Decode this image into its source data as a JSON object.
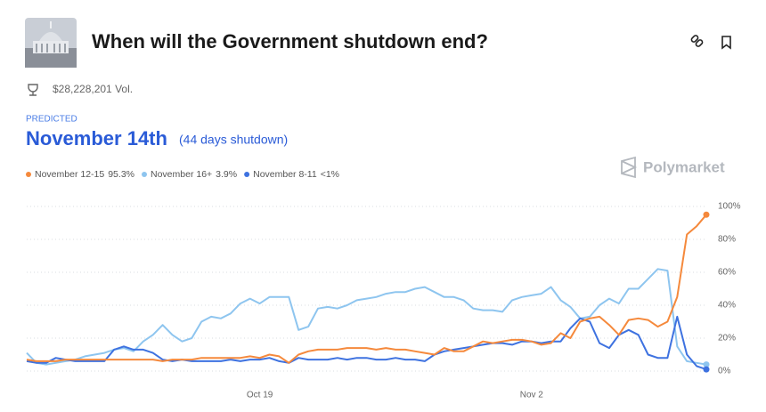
{
  "header": {
    "title": "When will the Government shutdown end?",
    "volume": "$28,228,201 Vol."
  },
  "prediction": {
    "label": "PREDICTED",
    "value": "November 14th",
    "detail": "(44 days shutdown)"
  },
  "brand": "Polymarket",
  "chart_data": {
    "type": "line",
    "categories": [
      null,
      null,
      null,
      null,
      null,
      null,
      null,
      null,
      null,
      null,
      null,
      null,
      null,
      null,
      null,
      null,
      null,
      null,
      null,
      null,
      null,
      null,
      null,
      null,
      "Oct 19",
      null,
      null,
      null,
      null,
      null,
      null,
      null,
      null,
      null,
      null,
      null,
      null,
      null,
      null,
      null,
      null,
      null,
      null,
      null,
      null,
      null,
      null,
      null,
      null,
      null,
      null,
      null,
      "Nov 2",
      null,
      null,
      null,
      null,
      null,
      null,
      null,
      null,
      null,
      null,
      null,
      null,
      null,
      null,
      null,
      null,
      null,
      null
    ],
    "series": [
      {
        "name": "November 12-15",
        "legend_label": "95.3%",
        "color": "#f5893c",
        "values": [
          7,
          6,
          6,
          6,
          7,
          7,
          7,
          7,
          7,
          7,
          7,
          7,
          7,
          7,
          6,
          7,
          7,
          7,
          8,
          8,
          8,
          8,
          8,
          9,
          8,
          10,
          9,
          5,
          10,
          12,
          13,
          13,
          13,
          14,
          14,
          14,
          13,
          14,
          13,
          13,
          12,
          11,
          10,
          14,
          12,
          12,
          15,
          18,
          17,
          18,
          19,
          19,
          18,
          16,
          17,
          23,
          20,
          30,
          32,
          33,
          28,
          22,
          31,
          32,
          31,
          27,
          30,
          45,
          83,
          88,
          95
        ]
      },
      {
        "name": "November 16+",
        "legend_label": "3.9%",
        "color": "#8ec5ef",
        "values": [
          11,
          5,
          4,
          5,
          6,
          7,
          9,
          10,
          11,
          13,
          14,
          12,
          18,
          22,
          28,
          22,
          18,
          20,
          30,
          33,
          32,
          35,
          41,
          44,
          41,
          45,
          45,
          45,
          25,
          27,
          38,
          39,
          38,
          40,
          43,
          44,
          45,
          47,
          48,
          48,
          50,
          51,
          48,
          45,
          45,
          43,
          38,
          37,
          37,
          36,
          43,
          45,
          46,
          47,
          51,
          43,
          39,
          32,
          33,
          40,
          44,
          41,
          50,
          50,
          56,
          62,
          61,
          15,
          6,
          5,
          4
        ]
      },
      {
        "name": "November 8-11",
        "legend_label": "<1%",
        "color": "#3e72e0",
        "values": [
          6,
          5,
          5,
          8,
          7,
          6,
          6,
          6,
          6,
          13,
          15,
          13,
          13,
          11,
          7,
          6,
          7,
          6,
          6,
          6,
          6,
          7,
          6,
          7,
          7,
          8,
          6,
          5,
          8,
          7,
          7,
          7,
          8,
          7,
          8,
          8,
          7,
          7,
          8,
          7,
          7,
          6,
          10,
          12,
          13,
          14,
          15,
          16,
          17,
          17,
          16,
          18,
          18,
          17,
          18,
          18,
          26,
          32,
          30,
          17,
          14,
          22,
          25,
          22,
          10,
          8,
          8,
          33,
          10,
          3,
          1
        ]
      }
    ],
    "ylim": [
      0,
      100
    ],
    "yticks": [
      {
        "value": 0,
        "label": "0%"
      },
      {
        "value": 20,
        "label": "20%"
      },
      {
        "value": 40,
        "label": "40%"
      },
      {
        "value": 60,
        "label": "60%"
      },
      {
        "value": 80,
        "label": "80%"
      },
      {
        "value": 100,
        "label": "100%"
      }
    ],
    "grid": true
  }
}
